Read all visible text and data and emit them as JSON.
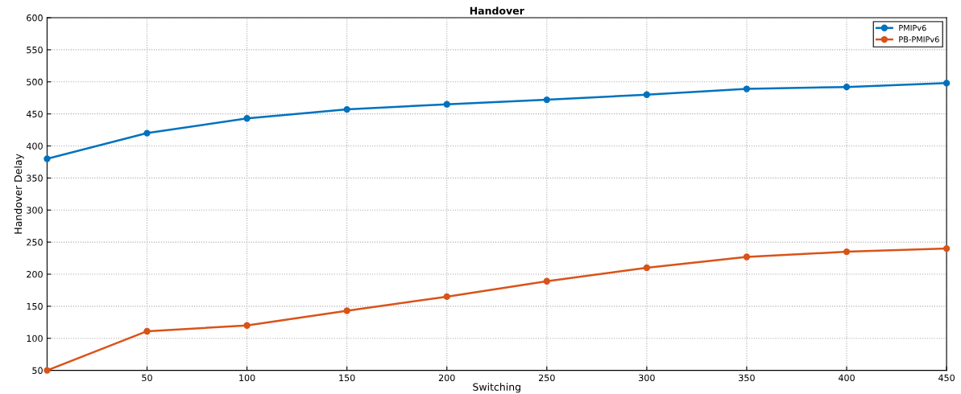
{
  "chart_data": {
    "type": "line",
    "title": "Handover",
    "xlabel": "Switching",
    "ylabel": "Handover Delay",
    "x": [
      0,
      50,
      100,
      150,
      200,
      250,
      300,
      350,
      400,
      450
    ],
    "series": [
      {
        "name": "PMIPv6",
        "color": "#0072bd",
        "values": [
          380,
          420,
          443,
          457,
          465,
          472,
          480,
          489,
          492,
          498
        ]
      },
      {
        "name": "PB-PMIPv6",
        "color": "#d95319",
        "values": [
          50,
          111,
          120,
          143,
          165,
          189,
          210,
          227,
          235,
          240
        ]
      }
    ],
    "xlim": [
      0,
      450
    ],
    "xticks": [
      50,
      100,
      150,
      200,
      250,
      300,
      350,
      400,
      450
    ],
    "ylim": [
      50,
      600
    ],
    "yticks": [
      50,
      100,
      150,
      200,
      250,
      300,
      350,
      400,
      450,
      500,
      550,
      600
    ],
    "grid": true,
    "legend": "top right",
    "marker": "circle",
    "line_style": "solid"
  }
}
